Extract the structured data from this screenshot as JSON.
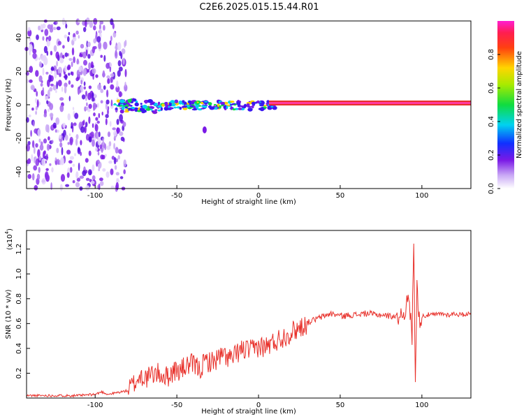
{
  "title": "C2E6.2025.015.15.44.R01",
  "colors": {
    "snr_line": "#e8302a",
    "frame": "#000000",
    "carrier": "#e8302a"
  },
  "chart_data": [
    {
      "type": "heatmap",
      "xlabel": "Height of straight line (km)",
      "ylabel": "Frequency (Hz)",
      "xlim": [
        -142,
        130
      ],
      "ylim": [
        -50,
        50
      ],
      "x_ticks": [
        -100,
        -50,
        0,
        50,
        100
      ],
      "y_ticks": [
        -40,
        -20,
        0,
        20,
        40
      ],
      "colorbar": {
        "label": "Normalized spectral amplitude",
        "range": [
          0.0,
          1.0
        ],
        "ticks": [
          "0.0",
          "0.2",
          "0.4",
          "0.6",
          "0.8"
        ],
        "colormap": "white-violet-blue-cyan-green-yellow-red-magenta"
      },
      "carrier_line_hz": 0.5
    },
    {
      "type": "line",
      "xlabel": "Height of straight line (km)",
      "ylabel": "SNR (10 * v/v)",
      "y_exponent_label": "(x10",
      "y_exponent_power": "4",
      "xlim": [
        -142,
        130
      ],
      "ylim": [
        0,
        1.35
      ],
      "x_ticks": [
        -100,
        -50,
        0,
        50,
        100
      ],
      "y_ticks": [
        "0.2",
        "0.4",
        "0.6",
        "0.8",
        "1.0",
        "1.2"
      ],
      "series": [
        {
          "x": [
            -142,
            -130,
            -120,
            -110,
            -100,
            -96,
            -92,
            -88,
            -84,
            -80,
            -76,
            -72,
            -68,
            -64,
            -60,
            -56,
            -52,
            -48,
            -44,
            -40,
            -36,
            -32,
            -28,
            -24,
            -20,
            -16,
            -12,
            -8,
            -4,
            0,
            4,
            8,
            12,
            16,
            20,
            24,
            28,
            32,
            36,
            40,
            44,
            48,
            52,
            56,
            60,
            64,
            68,
            72,
            76,
            80,
            84,
            88,
            90,
            92,
            94,
            95,
            96,
            97,
            98,
            100,
            104,
            108,
            112,
            116,
            120,
            124,
            128,
            130
          ],
          "y": [
            0.02,
            0.02,
            0.02,
            0.02,
            0.03,
            0.05,
            0.03,
            0.04,
            0.05,
            0.06,
            0.12,
            0.18,
            0.16,
            0.2,
            0.19,
            0.17,
            0.22,
            0.22,
            0.26,
            0.27,
            0.23,
            0.3,
            0.29,
            0.33,
            0.34,
            0.31,
            0.38,
            0.39,
            0.38,
            0.42,
            0.41,
            0.44,
            0.47,
            0.5,
            0.53,
            0.56,
            0.59,
            0.62,
            0.64,
            0.66,
            0.68,
            0.67,
            0.66,
            0.67,
            0.67,
            0.68,
            0.68,
            0.67,
            0.67,
            0.66,
            0.66,
            0.68,
            0.72,
            0.8,
            0.5,
            1.3,
            0.1,
            1.0,
            0.62,
            0.66,
            0.67,
            0.67,
            0.68,
            0.67,
            0.68,
            0.67,
            0.68,
            0.67
          ]
        }
      ]
    }
  ]
}
